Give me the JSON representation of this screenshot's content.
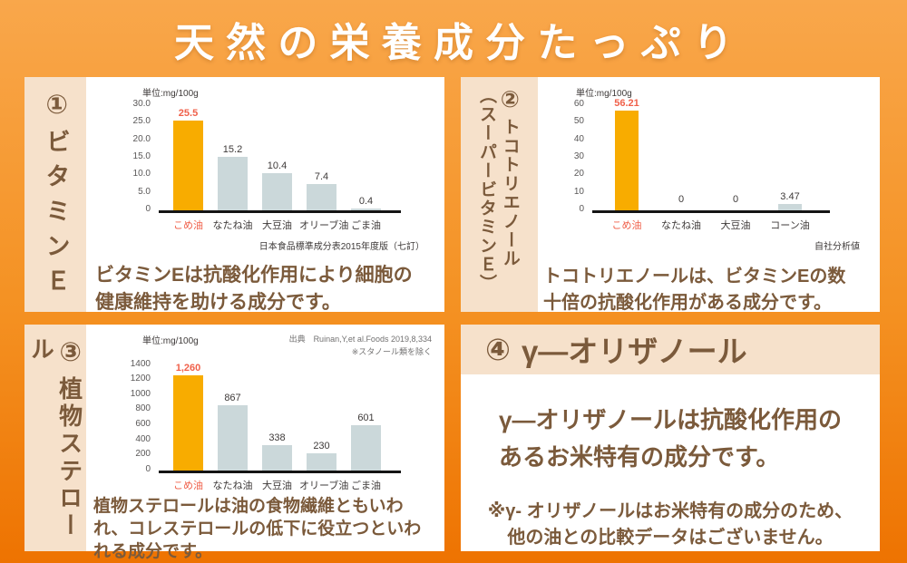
{
  "title": "天然の栄養成分たっぷり",
  "colors": {
    "background_top": "#F9A74B",
    "background_bottom": "#EE7301",
    "panel_beige": "#F6E1CB",
    "text_brown": "#7B5A3B",
    "bar_highlight": "#F8AC00",
    "bar_default": "#CBD8DA",
    "value_highlight": "#F0604A",
    "title_text": "#FFFFFF"
  },
  "panels": [
    {
      "number": "①",
      "vertical_label": [
        "ビタミンＥ"
      ],
      "description": [
        "ビタミンEは抗酸化作用により細胞の",
        "健康維持を助ける成分です。"
      ]
    },
    {
      "number": "②",
      "vertical_label": [
        "トコトリエノール",
        "（スーパービタミンＥ）"
      ],
      "description": [
        "トコトリエノールは、ビタミンEの数",
        "十倍の抗酸化作用がある成分です。"
      ]
    },
    {
      "number": "③",
      "vertical_label": [
        "植物ステロール"
      ],
      "description": [
        "植物ステロールは油の食物繊維ともいわ",
        "れ、コレステロールの低下に役立つといわ",
        "れる成分です。"
      ]
    },
    {
      "number": "④",
      "title": "γ―オリザノール",
      "description": [
        "γ―オリザノールは抗酸化作用の",
        "あるお米特有の成分です。"
      ],
      "note": [
        "※γ- オリザノールはお米特有の成分のため、",
        "他の油との比較データはございません。"
      ]
    }
  ],
  "chart_data": [
    {
      "type": "bar",
      "title": "ビタミンE",
      "unit": "単位:mg/100g",
      "categories": [
        "こめ油",
        "なたね油",
        "大豆油",
        "オリーブ油",
        "ごま油"
      ],
      "values": [
        25.5,
        15.2,
        10.4,
        7.4,
        0.4
      ],
      "display_values": [
        "25.5",
        "15.2",
        "10.4",
        "7.4",
        "0.4"
      ],
      "ymax": 30,
      "yticks": [
        "30.0",
        "25.0",
        "20.0",
        "15.0",
        "10.0",
        "5.0",
        "0"
      ],
      "highlight_index": 0,
      "grid": false,
      "source_bottom": "日本食品標準成分表2015年度版（七訂）"
    },
    {
      "type": "bar",
      "title": "トコトリエノール（スーパービタミンE）",
      "unit": "単位:mg/100g",
      "categories": [
        "こめ油",
        "なたね油",
        "大豆油",
        "コーン油"
      ],
      "values": [
        56.21,
        0,
        0,
        3.47
      ],
      "display_values": [
        "56.21",
        "0",
        "0",
        "3.47"
      ],
      "ymax": 60,
      "yticks": [
        "60",
        "50",
        "40",
        "30",
        "20",
        "10",
        "0"
      ],
      "highlight_index": 0,
      "grid": false,
      "source_bottom": "自社分析値"
    },
    {
      "type": "bar",
      "title": "植物ステロール",
      "unit": "単位:mg/100g",
      "categories": [
        "こめ油",
        "なたね油",
        "大豆油",
        "オリーブ油",
        "ごま油"
      ],
      "values": [
        1260,
        867,
        338,
        230,
        601
      ],
      "display_values": [
        "1,260",
        "867",
        "338",
        "230",
        "601"
      ],
      "ymax": 1400,
      "yticks": [
        "1400",
        "1200",
        "1000",
        "800",
        "600",
        "400",
        "200",
        "0"
      ],
      "highlight_index": 0,
      "grid": false,
      "source_top": [
        "出典　Ruinan,Y,et al.Foods 2019,8,334",
        "※スタノール類を除く"
      ]
    }
  ]
}
